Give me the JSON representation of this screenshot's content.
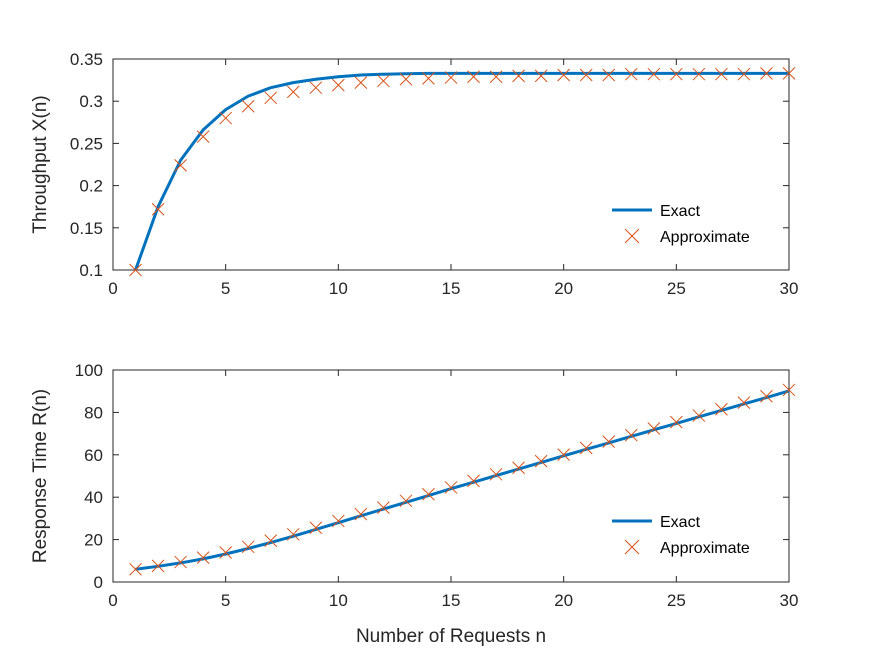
{
  "colors": {
    "exact": "#0072BD",
    "approximate": "#D95319",
    "axis": "#262626",
    "background": "#ffffff"
  },
  "chart_data": [
    {
      "type": "line",
      "ylabel": "Throughput X(n)",
      "xlabel": "",
      "xlim": [
        0,
        30
      ],
      "ylim": [
        0.1,
        0.35
      ],
      "xticks": [
        0,
        5,
        10,
        15,
        20,
        25,
        30
      ],
      "yticks": [
        0.1,
        0.15,
        0.2,
        0.25,
        0.3,
        0.35
      ],
      "ytick_labels": [
        "0.1",
        "0.15",
        "0.2",
        "0.25",
        "0.3",
        "0.35"
      ],
      "grid": false,
      "legend_position": "lower-right",
      "series": [
        {
          "name": "Exact",
          "style": "line",
          "x": [
            1,
            2,
            3,
            4,
            5,
            6,
            7,
            8,
            9,
            10,
            11,
            12,
            13,
            14,
            15,
            16,
            17,
            18,
            19,
            20,
            21,
            22,
            23,
            24,
            25,
            26,
            27,
            28,
            29,
            30
          ],
          "y": [
            0.1,
            0.175,
            0.23,
            0.266,
            0.29,
            0.306,
            0.316,
            0.322,
            0.326,
            0.329,
            0.331,
            0.332,
            0.3325,
            0.333,
            0.333,
            0.333,
            0.333,
            0.333,
            0.333,
            0.333,
            0.333,
            0.333,
            0.333,
            0.333,
            0.333,
            0.333,
            0.333,
            0.333,
            0.333,
            0.333
          ]
        },
        {
          "name": "Approximate",
          "style": "marker-x",
          "x": [
            1,
            2,
            3,
            4,
            5,
            6,
            7,
            8,
            9,
            10,
            11,
            12,
            13,
            14,
            15,
            16,
            17,
            18,
            19,
            20,
            21,
            22,
            23,
            24,
            25,
            26,
            27,
            28,
            29,
            30
          ],
          "y": [
            0.1,
            0.172,
            0.224,
            0.258,
            0.28,
            0.294,
            0.304,
            0.311,
            0.316,
            0.319,
            0.322,
            0.324,
            0.326,
            0.327,
            0.328,
            0.329,
            0.329,
            0.33,
            0.33,
            0.331,
            0.331,
            0.331,
            0.332,
            0.332,
            0.332,
            0.332,
            0.332,
            0.332,
            0.333,
            0.333
          ]
        }
      ]
    },
    {
      "type": "line",
      "ylabel": "Response Time R(n)",
      "xlabel": "Number of Requests n",
      "xlim": [
        0,
        30
      ],
      "ylim": [
        0,
        100
      ],
      "xticks": [
        0,
        5,
        10,
        15,
        20,
        25,
        30
      ],
      "yticks": [
        0,
        20,
        40,
        60,
        80,
        100
      ],
      "ytick_labels": [
        "0",
        "20",
        "40",
        "60",
        "80",
        "100"
      ],
      "grid": false,
      "legend_position": "lower-right",
      "series": [
        {
          "name": "Exact",
          "style": "line",
          "x": [
            1,
            2,
            3,
            4,
            5,
            6,
            7,
            8,
            9,
            10,
            11,
            12,
            13,
            14,
            15,
            16,
            17,
            18,
            19,
            20,
            21,
            22,
            23,
            24,
            25,
            26,
            27,
            28,
            29,
            30
          ],
          "y": [
            6.0,
            7.4,
            9.0,
            10.9,
            13.2,
            15.8,
            18.6,
            21.6,
            24.8,
            28.0,
            31.2,
            34.4,
            37.6,
            40.8,
            44.0,
            47.1,
            50.2,
            53.3,
            56.4,
            59.5,
            62.6,
            65.6,
            68.7,
            71.8,
            74.8,
            77.9,
            80.9,
            84.0,
            87.0,
            90.1
          ]
        },
        {
          "name": "Approximate",
          "style": "marker-x",
          "x": [
            1,
            2,
            3,
            4,
            5,
            6,
            7,
            8,
            9,
            10,
            11,
            12,
            13,
            14,
            15,
            16,
            17,
            18,
            19,
            20,
            21,
            22,
            23,
            24,
            25,
            26,
            27,
            28,
            29,
            30
          ],
          "y": [
            6.0,
            7.6,
            9.4,
            11.5,
            13.9,
            16.6,
            19.5,
            22.5,
            25.6,
            28.8,
            32.0,
            35.1,
            38.3,
            41.4,
            44.6,
            47.7,
            50.8,
            53.9,
            57.0,
            60.1,
            63.2,
            66.2,
            69.3,
            72.4,
            75.4,
            78.5,
            81.5,
            84.6,
            87.6,
            90.6
          ]
        }
      ]
    }
  ]
}
